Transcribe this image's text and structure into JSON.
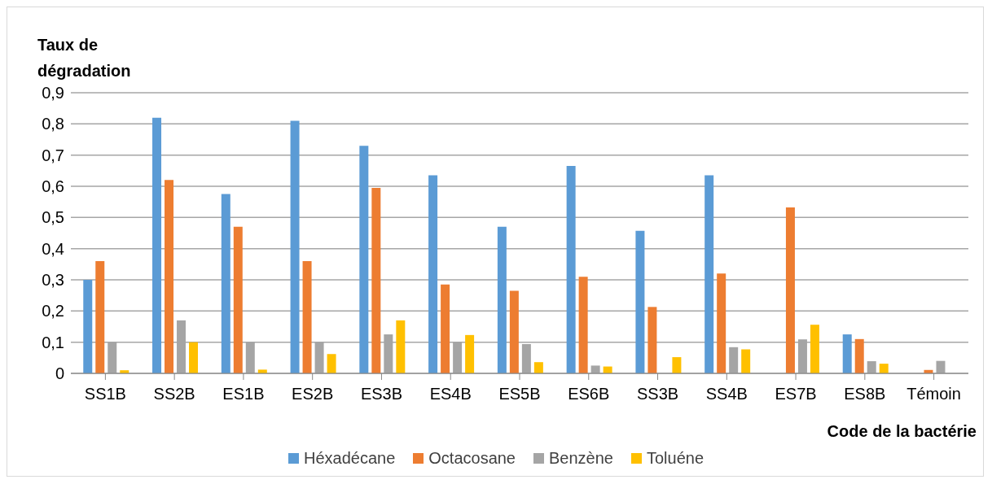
{
  "chart_data": {
    "type": "bar",
    "ylabel": "Taux de dégradation",
    "xlabel": "Code de la bactérie",
    "categories": [
      "SS1B",
      "SS2B",
      "ES1B",
      "ES2B",
      "ES3B",
      "ES4B",
      "ES5B",
      "ES6B",
      "SS3B",
      "SS4B",
      "ES7B",
      "ES8B",
      "Témoin"
    ],
    "series": [
      {
        "name": "Héxadécane",
        "color": "#5b9bd5",
        "values": [
          0.3,
          0.82,
          0.575,
          0.81,
          0.73,
          0.635,
          0.47,
          0.665,
          0.457,
          0.635,
          0,
          0.125,
          null
        ]
      },
      {
        "name": "Octacosane",
        "color": "#ed7d31",
        "values": [
          0.36,
          0.62,
          0.47,
          0.36,
          0.595,
          0.285,
          0.265,
          0.31,
          0.213,
          0.32,
          0.532,
          0.11,
          0.011
        ]
      },
      {
        "name": "Benzène",
        "color": "#a5a5a5",
        "values": [
          0.1,
          0.17,
          0.1,
          0.1,
          0.125,
          0.1,
          0.094,
          0.025,
          null,
          0.084,
          0.109,
          0.039,
          0.04
        ]
      },
      {
        "name": "Toluéne",
        "color": "#ffc000",
        "values": [
          0.01,
          0.1,
          0.012,
          0.062,
          0.17,
          0.123,
          0.036,
          0.022,
          0.052,
          0.077,
          0.156,
          0.031,
          0
        ]
      }
    ],
    "ylim": [
      0,
      0.9
    ],
    "yticks": [
      0,
      {
        "value": 0.1,
        "label": "0,1"
      },
      {
        "value": 0.2,
        "label": "0,2"
      },
      {
        "value": 0.3,
        "label": "0,3"
      },
      {
        "value": 0.4,
        "label": "0,4"
      },
      {
        "value": 0.5,
        "label": "0,5"
      },
      {
        "value": 0.6,
        "label": "0,6"
      },
      {
        "value": 0.7,
        "label": "0,7"
      },
      {
        "value": 0.8,
        "label": "0,8"
      },
      {
        "value": 0.9,
        "label": "0,9"
      }
    ],
    "grid": "y",
    "legend": "bottom"
  }
}
